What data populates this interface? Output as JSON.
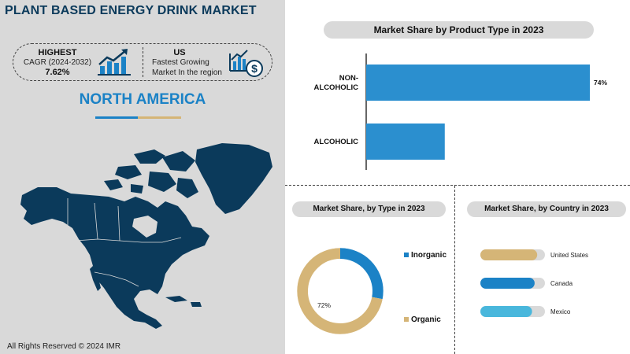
{
  "header": {
    "title": "PLANT BASED ENERGY DRINK MARKET"
  },
  "kpi": {
    "highest_label": "HIGHEST",
    "cagr_label": "CAGR (2024-2032)",
    "cagr_value": "7.62%",
    "fastest_region": "US",
    "fastest_text_line1": "Fastest Growing",
    "fastest_text_line2": "Market In the region"
  },
  "region": {
    "title": "NORTH AMERICA"
  },
  "footer": {
    "text": "All Rights Reserved © 2024 IMR"
  },
  "colors": {
    "navy": "#0b3a5b",
    "blue": "#1b82c6",
    "bar_blue": "#2b8fcf",
    "gold": "#d5b577",
    "light_blue": "#49b7dc",
    "gray_panel": "#d9d9d9"
  },
  "chart_data": [
    {
      "type": "bar",
      "orientation": "horizontal",
      "title": "Market Share by Product Type in 2023",
      "categories": [
        "NON-ALCOHOLIC",
        "ALCOHOLIC"
      ],
      "values": [
        74,
        26
      ],
      "data_labels": [
        "74%",
        ""
      ],
      "xlim": [
        0,
        74
      ],
      "color": "#2b8fcf"
    },
    {
      "type": "pie",
      "donut": true,
      "title": "Market Share, by Type in 2023",
      "categories": [
        "Inorganic",
        "Organic"
      ],
      "values": [
        28,
        72
      ],
      "data_labels": [
        "",
        "72%"
      ],
      "colors": [
        "#1b82c6",
        "#d5b577"
      ],
      "legend_placement": "right"
    },
    {
      "type": "bar",
      "orientation": "horizontal",
      "title": "Market Share, by Country in 2023",
      "categories": [
        "United States",
        "Canada",
        "Mexico"
      ],
      "values": [
        88,
        84,
        80
      ],
      "xlim": [
        0,
        100
      ],
      "colors": [
        "#d5b577",
        "#1b82c6",
        "#49b7dc"
      ],
      "track_color": "#d9d9d9"
    }
  ]
}
